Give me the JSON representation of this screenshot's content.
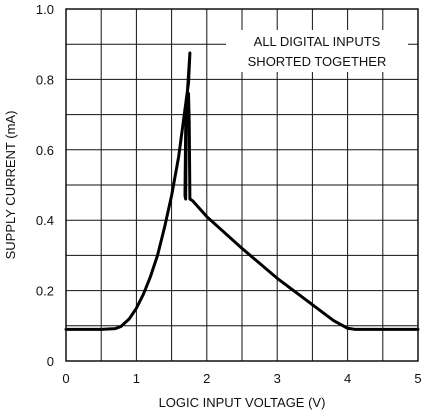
{
  "chart_data": {
    "type": "line",
    "title": "",
    "xlabel": "LOGIC INPUT VOLTAGE (V)",
    "ylabel": "SUPPLY CURRENT (mA)",
    "xlim": [
      0,
      5
    ],
    "ylim": [
      0,
      1.0
    ],
    "x_ticks": [
      "0",
      "1",
      "2",
      "3",
      "4",
      "5"
    ],
    "y_ticks": [
      "0",
      "0.2",
      "0.4",
      "0.6",
      "0.8",
      "1.0"
    ],
    "grid": true,
    "annotation": {
      "lines": [
        "ALL DIGITAL INPUTS",
        "SHORTED TOGETHER"
      ]
    },
    "series": [
      {
        "points": [
          [
            0.0,
            0.09
          ],
          [
            0.5,
            0.09
          ],
          [
            0.7,
            0.092
          ],
          [
            0.78,
            0.098
          ],
          [
            0.9,
            0.12
          ],
          [
            1.0,
            0.15
          ],
          [
            1.1,
            0.19
          ],
          [
            1.2,
            0.24
          ],
          [
            1.3,
            0.3
          ],
          [
            1.4,
            0.38
          ],
          [
            1.5,
            0.47
          ],
          [
            1.6,
            0.58
          ],
          [
            1.68,
            0.7
          ],
          [
            1.74,
            0.79
          ],
          [
            1.76,
            0.875
          ],
          [
            1.72,
            0.75
          ],
          [
            1.7,
            0.66
          ],
          [
            1.69,
            0.47
          ],
          [
            1.7,
            0.46
          ],
          [
            1.71,
            0.72
          ],
          [
            1.74,
            0.76
          ],
          [
            1.75,
            0.68
          ],
          [
            1.76,
            0.46
          ],
          [
            1.8,
            0.455
          ],
          [
            2.0,
            0.41
          ],
          [
            2.5,
            0.32
          ],
          [
            3.0,
            0.235
          ],
          [
            3.5,
            0.16
          ],
          [
            3.8,
            0.115
          ],
          [
            4.0,
            0.093
          ],
          [
            4.1,
            0.09
          ],
          [
            5.0,
            0.09
          ]
        ]
      }
    ]
  }
}
